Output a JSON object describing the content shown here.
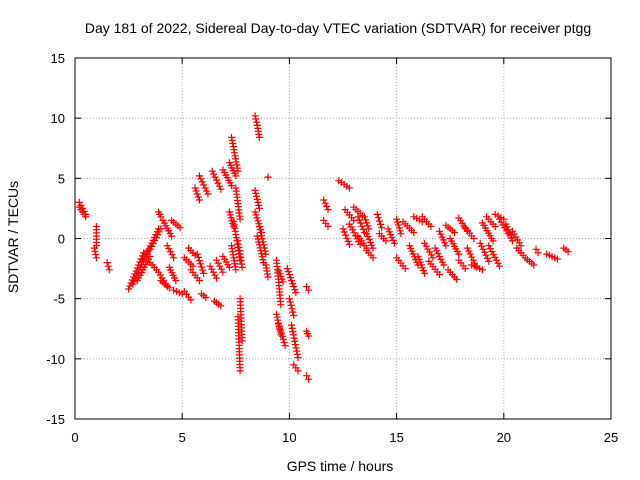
{
  "chart_data": {
    "type": "scatter",
    "title": "Day 181 of 2022, Sidereal Day-to-day VTEC variation (SDTVAR) for receiver ptgg",
    "xlabel": "GPS time / hours",
    "ylabel": "SDTVAR / TECUs",
    "xlim": [
      0,
      25
    ],
    "ylim": [
      -15,
      15
    ],
    "xticks": [
      0,
      5,
      10,
      15,
      20,
      25
    ],
    "yticks": [
      -15,
      -10,
      -5,
      0,
      5,
      10,
      15
    ],
    "grid": true,
    "marker": "+",
    "color": "#ff0000",
    "segments": [
      [
        0.2,
        0.5,
        3.0,
        2.0
      ],
      [
        0.2,
        0.5,
        2.6,
        1.8
      ],
      [
        1.0,
        1.0,
        1.0,
        -0.6
      ],
      [
        0.9,
        1.0,
        -0.8,
        -1.6
      ],
      [
        1.5,
        1.6,
        -2.0,
        -2.6
      ],
      [
        2.5,
        3.2,
        -4.2,
        -1.2
      ],
      [
        2.7,
        3.4,
        -3.8,
        -1.0
      ],
      [
        2.9,
        3.5,
        -3.5,
        -1.5
      ],
      [
        3.2,
        3.9,
        -1.8,
        0.8
      ],
      [
        3.5,
        4.0,
        -0.9,
        0.8
      ],
      [
        3.5,
        3.8,
        -2.0,
        -2.6
      ],
      [
        3.9,
        4.0,
        2.2,
        1.8
      ],
      [
        3.9,
        4.3,
        -2.8,
        -4.0
      ],
      [
        4.0,
        4.4,
        -3.5,
        -4.1
      ],
      [
        4.1,
        4.5,
        1.5,
        0.2
      ],
      [
        4.3,
        4.6,
        -0.6,
        -1.6
      ],
      [
        4.4,
        4.7,
        -2.4,
        -3.5
      ],
      [
        4.5,
        4.9,
        1.5,
        0.9
      ],
      [
        4.6,
        5.0,
        -4.3,
        -4.6
      ],
      [
        5.1,
        5.4,
        -4.4,
        -5.1
      ],
      [
        5.1,
        5.5,
        -1.6,
        -2.3
      ],
      [
        5.3,
        5.6,
        -0.8,
        -1.4
      ],
      [
        5.4,
        5.8,
        -2.6,
        -3.5
      ],
      [
        5.6,
        5.8,
        4.2,
        3.2
      ],
      [
        5.7,
        6.0,
        -1.3,
        -2.9
      ],
      [
        5.8,
        6.2,
        5.2,
        3.7
      ],
      [
        5.9,
        6.1,
        -4.6,
        -4.9
      ],
      [
        6.3,
        6.6,
        -2.3,
        -3.3
      ],
      [
        6.4,
        6.8,
        5.6,
        4.1
      ],
      [
        6.6,
        6.9,
        -1.8,
        -2.8
      ],
      [
        6.5,
        6.8,
        -5.2,
        -5.6
      ],
      [
        6.9,
        7.3,
        5.7,
        4.4
      ],
      [
        6.9,
        7.2,
        -1.5,
        -2.4
      ],
      [
        7.2,
        7.5,
        6.3,
        5.2
      ],
      [
        7.3,
        7.6,
        8.4,
        5.6
      ],
      [
        7.2,
        7.4,
        2.2,
        1.0
      ],
      [
        7.3,
        7.5,
        -0.6,
        -2.6
      ],
      [
        7.4,
        7.7,
        1.4,
        -1.8
      ],
      [
        7.5,
        7.7,
        4.2,
        1.6
      ],
      [
        7.6,
        7.8,
        -0.2,
        -2.4
      ],
      [
        7.6,
        7.7,
        -6.5,
        -11.0
      ],
      [
        7.7,
        7.8,
        -5.0,
        -8.5
      ],
      [
        8.4,
        8.5,
        10.2,
        9.4
      ],
      [
        8.5,
        8.6,
        9.4,
        8.4
      ],
      [
        8.4,
        8.6,
        4.0,
        2.5
      ],
      [
        8.4,
        8.7,
        2.2,
        0.5
      ],
      [
        8.5,
        8.8,
        0.2,
        -2.0
      ],
      [
        8.6,
        8.9,
        1.0,
        -1.3
      ],
      [
        8.9,
        9.0,
        -2.2,
        -3.2
      ],
      [
        9.0,
        9.0,
        5.1,
        5.1
      ],
      [
        9.4,
        9.6,
        -1.8,
        -5.5
      ],
      [
        9.5,
        9.7,
        -2.7,
        -3.6
      ],
      [
        9.4,
        9.6,
        -6.3,
        -8.0
      ],
      [
        9.5,
        9.8,
        -7.1,
        -8.9
      ],
      [
        9.9,
        10.3,
        -2.5,
        -4.5
      ],
      [
        10.0,
        10.2,
        -5.0,
        -6.4
      ],
      [
        10.1,
        10.4,
        -7.2,
        -9.9
      ],
      [
        10.2,
        10.4,
        -10.5,
        -11.0
      ],
      [
        10.8,
        10.9,
        -4.0,
        -4.3
      ],
      [
        10.8,
        10.9,
        -11.4,
        -11.7
      ],
      [
        10.8,
        10.9,
        -7.7,
        -8.1
      ],
      [
        11.6,
        11.8,
        3.2,
        2.4
      ],
      [
        11.6,
        11.8,
        1.5,
        1.0
      ],
      [
        12.3,
        12.8,
        4.8,
        4.2
      ],
      [
        12.5,
        12.8,
        0.8,
        -0.5
      ],
      [
        12.6,
        13.0,
        2.4,
        1.5
      ],
      [
        12.8,
        13.3,
        1.2,
        -0.5
      ],
      [
        13.0,
        13.4,
        2.6,
        1.9
      ],
      [
        13.2,
        13.5,
        1.8,
        0.5
      ],
      [
        13.2,
        13.6,
        0.2,
        -0.8
      ],
      [
        13.5,
        13.7,
        1.8,
        0.8
      ],
      [
        13.6,
        13.9,
        0.4,
        -0.8
      ],
      [
        13.6,
        13.9,
        -1.0,
        -1.6
      ],
      [
        14.1,
        14.3,
        2.0,
        0.9
      ],
      [
        14.2,
        14.5,
        0.4,
        -0.2
      ],
      [
        14.6,
        14.9,
        0.8,
        -0.4
      ],
      [
        15.0,
        15.2,
        1.6,
        0.4
      ],
      [
        15.0,
        15.4,
        -1.6,
        -2.5
      ],
      [
        15.3,
        15.8,
        1.4,
        0.5
      ],
      [
        15.6,
        16.0,
        -0.6,
        -2.2
      ],
      [
        15.8,
        16.2,
        1.8,
        1.4
      ],
      [
        16.0,
        16.3,
        -1.5,
        -2.9
      ],
      [
        16.2,
        16.6,
        1.8,
        1.0
      ],
      [
        16.3,
        16.7,
        -0.4,
        -1.6
      ],
      [
        16.5,
        17.0,
        -1.9,
        -3.0
      ],
      [
        16.8,
        17.2,
        -0.8,
        -2.2
      ],
      [
        17.0,
        17.3,
        0.6,
        -0.6
      ],
      [
        17.3,
        17.7,
        1.1,
        0.5
      ],
      [
        17.4,
        17.8,
        -2.6,
        -3.4
      ],
      [
        17.5,
        17.9,
        0.0,
        -1.3
      ],
      [
        17.9,
        18.3,
        1.7,
        0.6
      ],
      [
        17.9,
        18.2,
        -1.8,
        -2.5
      ],
      [
        18.2,
        18.6,
        0.9,
        0.0
      ],
      [
        18.3,
        18.7,
        -0.8,
        -2.3
      ],
      [
        18.5,
        19.0,
        -2.2,
        -2.6
      ],
      [
        18.9,
        19.3,
        -0.4,
        -1.9
      ],
      [
        19.0,
        19.5,
        1.3,
        -0.2
      ],
      [
        19.2,
        19.6,
        1.8,
        1.0
      ],
      [
        19.3,
        19.8,
        -0.6,
        -2.3
      ],
      [
        19.6,
        20.0,
        2.0,
        1.6
      ],
      [
        19.8,
        20.2,
        1.6,
        0.4
      ],
      [
        20.1,
        20.4,
        1.2,
        -0.2
      ],
      [
        20.4,
        20.8,
        0.6,
        -0.6
      ],
      [
        20.6,
        20.9,
        -0.8,
        -1.4
      ],
      [
        21.0,
        21.4,
        -1.6,
        -2.2
      ],
      [
        21.5,
        21.6,
        -0.9,
        -1.2
      ],
      [
        22.0,
        22.5,
        -1.3,
        -1.7
      ],
      [
        22.8,
        23.0,
        -0.8,
        -1.1
      ]
    ]
  }
}
